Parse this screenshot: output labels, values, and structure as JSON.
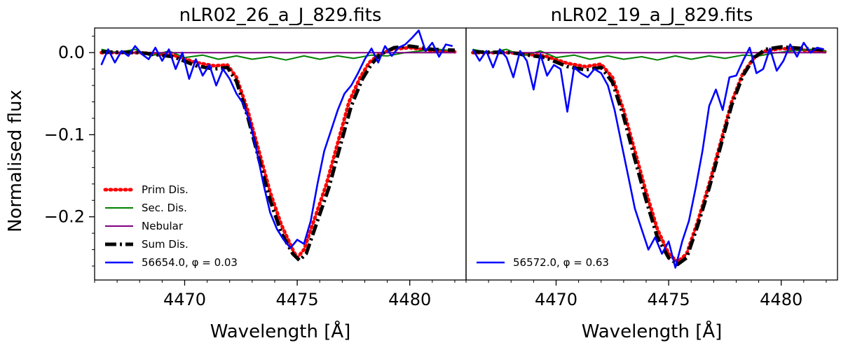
{
  "figure": {
    "ylabel": "Normalised flux"
  },
  "chart_data": [
    {
      "type": "line",
      "title": "nLR02_26_a_J_829.fits",
      "xlabel": "Wavelength [Å]",
      "ylabel": "Normalised flux",
      "xlim": [
        4466,
        4482.5
      ],
      "ylim": [
        -0.277,
        0.03
      ],
      "xticks": [
        4470,
        4475,
        4480
      ],
      "xtick_labels": [
        "4470",
        "4475",
        "4480"
      ],
      "yticks": [
        0.0,
        -0.1,
        -0.2
      ],
      "ytick_labels": [
        "0.0",
        "−0.1",
        "−0.2"
      ],
      "legend": {
        "placement": "lower-left",
        "entries": [
          "Prim Dis.",
          "Sec. Dis.",
          "Nebular",
          "Sum Dis.",
          "56654.0, φ = 0.03"
        ]
      },
      "series": [
        {
          "name": "Prim Dis.",
          "color": "#ff0000",
          "style": "dotted",
          "x": [
            4466.3,
            4468,
            4469.5,
            4470.5,
            4471.3,
            4471.9,
            4472.3,
            4472.8,
            4473.3,
            4473.8,
            4474.3,
            4474.8,
            4475.0,
            4475.3,
            4475.8,
            4476.3,
            4476.8,
            4477.3,
            4477.8,
            4478.2,
            4478.6,
            4479.2,
            4480,
            4481,
            4482
          ],
          "y": [
            0.0,
            0.0,
            -0.003,
            -0.012,
            -0.016,
            -0.015,
            -0.03,
            -0.07,
            -0.12,
            -0.17,
            -0.21,
            -0.24,
            -0.25,
            -0.24,
            -0.2,
            -0.16,
            -0.11,
            -0.06,
            -0.03,
            -0.012,
            -0.003,
            0.004,
            0.006,
            0.002,
            0.001
          ]
        },
        {
          "name": "Sec. Dis.",
          "color": "#008000",
          "style": "solid",
          "x": [
            4466.3,
            4467,
            4467.8,
            4468.5,
            4469.3,
            4470,
            4470.8,
            4471.5,
            4472.3,
            4473,
            4473.8,
            4474.5,
            4475.3,
            4476,
            4476.8,
            4477.5,
            4478.3,
            4479,
            4479.8,
            4480.5,
            4481.3,
            4482
          ],
          "y": [
            0.004,
            0.0,
            0.004,
            -0.004,
            0.002,
            -0.006,
            -0.003,
            -0.008,
            -0.004,
            -0.008,
            -0.005,
            -0.009,
            -0.004,
            -0.008,
            -0.004,
            -0.007,
            -0.003,
            -0.004,
            0.0,
            0.002,
            0.004,
            0.002
          ]
        },
        {
          "name": "Nebular",
          "color": "#800080",
          "style": "solid",
          "x": [
            4466.3,
            4482
          ],
          "y": [
            0.0,
            0.0
          ]
        },
        {
          "name": "Sum Dis.",
          "color": "#000000",
          "style": "dashdot",
          "x": [
            4466.3,
            4468,
            4469.5,
            4470.5,
            4471.3,
            4471.9,
            4472.3,
            4472.8,
            4473.3,
            4473.8,
            4474.3,
            4474.8,
            4475.1,
            4475.4,
            4475.9,
            4476.4,
            4476.9,
            4477.4,
            4477.9,
            4478.3,
            4478.7,
            4479.3,
            4480,
            4481,
            4482
          ],
          "y": [
            0.001,
            0.0,
            -0.005,
            -0.016,
            -0.02,
            -0.018,
            -0.035,
            -0.078,
            -0.13,
            -0.18,
            -0.22,
            -0.245,
            -0.253,
            -0.245,
            -0.205,
            -0.165,
            -0.115,
            -0.065,
            -0.032,
            -0.014,
            -0.002,
            0.006,
            0.008,
            0.004,
            0.003
          ]
        },
        {
          "name": "56654.0, φ = 0.03",
          "color": "#0000ff",
          "style": "solid",
          "x": [
            4466.3,
            4466.6,
            4466.9,
            4467.2,
            4467.5,
            4467.8,
            4468.1,
            4468.4,
            4468.7,
            4469.0,
            4469.3,
            4469.6,
            4469.9,
            4470.2,
            4470.5,
            4470.8,
            4471.1,
            4471.4,
            4471.7,
            4472.0,
            4472.3,
            4472.6,
            4472.9,
            4473.2,
            4473.5,
            4473.8,
            4474.1,
            4474.4,
            4474.7,
            4475.0,
            4475.3,
            4475.6,
            4475.9,
            4476.2,
            4476.5,
            4476.8,
            4477.1,
            4477.4,
            4477.7,
            4478.0,
            4478.3,
            4478.6,
            4478.9,
            4479.2,
            4479.5,
            4479.8,
            4480.1,
            4480.4,
            4480.7,
            4481.0,
            4481.3,
            4481.6,
            4481.9
          ],
          "y": [
            -0.015,
            0.004,
            -0.012,
            0.002,
            -0.004,
            0.008,
            -0.002,
            -0.008,
            0.006,
            -0.01,
            0.004,
            -0.02,
            0.0,
            -0.032,
            -0.008,
            -0.028,
            -0.015,
            -0.04,
            -0.02,
            -0.032,
            -0.05,
            -0.062,
            -0.085,
            -0.12,
            -0.16,
            -0.195,
            -0.215,
            -0.228,
            -0.238,
            -0.228,
            -0.233,
            -0.205,
            -0.16,
            -0.12,
            -0.095,
            -0.07,
            -0.05,
            -0.04,
            -0.025,
            -0.008,
            0.005,
            -0.012,
            0.008,
            -0.004,
            0.006,
            0.01,
            0.018,
            0.027,
            0.002,
            0.012,
            -0.005,
            0.01,
            0.008
          ]
        }
      ]
    },
    {
      "type": "line",
      "title": "nLR02_19_a_J_829.fits",
      "xlabel": "Wavelength [Å]",
      "xlim": [
        4466,
        4482.5
      ],
      "ylim": [
        -0.277,
        0.03
      ],
      "xticks": [
        4470,
        4475,
        4480
      ],
      "xtick_labels": [
        "4470",
        "4475",
        "4480"
      ],
      "legend": {
        "placement": "lower-left",
        "entries": [
          "56572.0, φ = 0.63"
        ]
      },
      "series": [
        {
          "name": "Prim Dis.",
          "color": "#ff0000",
          "style": "dotted",
          "x": [
            4466.3,
            4468,
            4469.5,
            4470.5,
            4471.3,
            4472.0,
            4472.5,
            4473.0,
            4473.5,
            4474.0,
            4474.5,
            4475.0,
            4475.4,
            4475.8,
            4476.3,
            4476.8,
            4477.3,
            4477.8,
            4478.3,
            4478.8,
            4479.3,
            4480,
            4481,
            4482
          ],
          "y": [
            0.0,
            0.0,
            -0.004,
            -0.013,
            -0.017,
            -0.014,
            -0.03,
            -0.07,
            -0.12,
            -0.17,
            -0.215,
            -0.245,
            -0.255,
            -0.245,
            -0.205,
            -0.16,
            -0.11,
            -0.06,
            -0.025,
            -0.006,
            0.002,
            0.005,
            0.003,
            0.001
          ]
        },
        {
          "name": "Sec. Dis.",
          "color": "#008000",
          "style": "solid",
          "x": [
            4466.3,
            4467,
            4467.8,
            4468.5,
            4469.3,
            4470,
            4470.8,
            4471.5,
            4472.3,
            4473,
            4473.8,
            4474.5,
            4475.3,
            4476,
            4476.8,
            4477.5,
            4478.3,
            4479,
            4479.8,
            4480.5,
            4481.3,
            4482
          ],
          "y": [
            0.004,
            0.0,
            0.004,
            -0.004,
            0.002,
            -0.006,
            -0.003,
            -0.008,
            -0.004,
            -0.008,
            -0.005,
            -0.009,
            -0.004,
            -0.008,
            -0.004,
            -0.007,
            -0.003,
            -0.004,
            0.0,
            0.002,
            0.004,
            0.002
          ]
        },
        {
          "name": "Nebular",
          "color": "#800080",
          "style": "solid",
          "x": [
            4466.3,
            4482
          ],
          "y": [
            0.0,
            0.0
          ]
        },
        {
          "name": "Sum Dis.",
          "color": "#000000",
          "style": "dashdot",
          "x": [
            4466.3,
            4468,
            4469.5,
            4470.5,
            4471.3,
            4472.0,
            4472.5,
            4473.0,
            4473.5,
            4474.0,
            4474.5,
            4475.0,
            4475.4,
            4475.8,
            4476.3,
            4476.8,
            4477.3,
            4477.8,
            4478.3,
            4478.8,
            4479.3,
            4480,
            4481,
            4482
          ],
          "y": [
            0.001,
            0.0,
            -0.006,
            -0.017,
            -0.021,
            -0.018,
            -0.036,
            -0.078,
            -0.13,
            -0.18,
            -0.225,
            -0.25,
            -0.258,
            -0.25,
            -0.21,
            -0.165,
            -0.115,
            -0.064,
            -0.028,
            -0.006,
            0.004,
            0.007,
            0.005,
            0.003
          ]
        },
        {
          "name": "56572.0, φ = 0.63",
          "color": "#0000ff",
          "style": "solid",
          "x": [
            4466.3,
            4466.6,
            4466.9,
            4467.2,
            4467.5,
            4467.8,
            4468.1,
            4468.4,
            4468.7,
            4469.0,
            4469.3,
            4469.6,
            4469.9,
            4470.2,
            4470.5,
            4470.8,
            4471.1,
            4471.4,
            4471.7,
            4472.0,
            4472.3,
            4472.6,
            4472.9,
            4473.2,
            4473.5,
            4473.8,
            4474.1,
            4474.4,
            4474.7,
            4475.0,
            4475.3,
            4475.6,
            4475.9,
            4476.2,
            4476.5,
            4476.8,
            4477.1,
            4477.4,
            4477.7,
            4478.0,
            4478.3,
            4478.6,
            4478.9,
            4479.2,
            4479.5,
            4479.8,
            4480.1,
            4480.4,
            4480.7,
            4481.0,
            4481.3,
            4481.6,
            4481.9
          ],
          "y": [
            0.004,
            -0.01,
            0.002,
            -0.018,
            0.004,
            -0.006,
            -0.03,
            0.002,
            -0.01,
            -0.045,
            -0.002,
            -0.028,
            -0.015,
            -0.02,
            -0.072,
            -0.018,
            -0.025,
            -0.03,
            -0.02,
            -0.025,
            -0.04,
            -0.07,
            -0.11,
            -0.15,
            -0.19,
            -0.215,
            -0.24,
            -0.225,
            -0.245,
            -0.23,
            -0.262,
            -0.23,
            -0.205,
            -0.165,
            -0.12,
            -0.065,
            -0.045,
            -0.07,
            -0.03,
            -0.028,
            -0.01,
            0.006,
            -0.025,
            -0.02,
            0.005,
            -0.022,
            -0.01,
            0.01,
            -0.005,
            0.012,
            0.0,
            0.006,
            0.004
          ]
        }
      ]
    }
  ]
}
